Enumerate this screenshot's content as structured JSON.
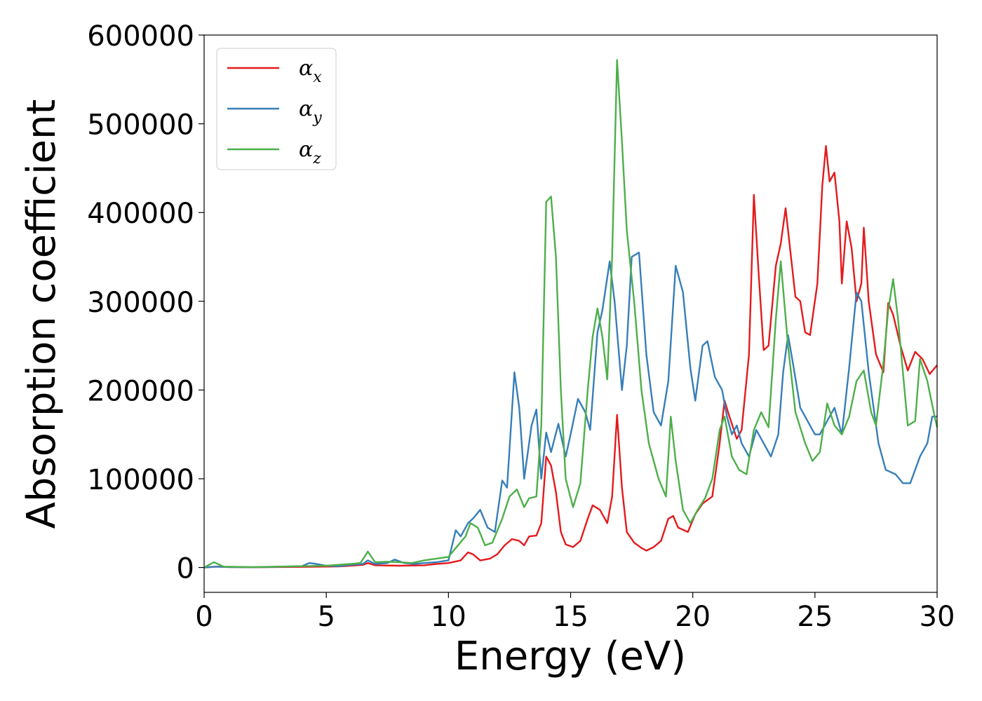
{
  "chart_data": {
    "type": "line",
    "title": "",
    "xlabel": "Energy (eV)",
    "ylabel": "Absorption coefficient",
    "xlim": [
      0,
      30
    ],
    "ylim": [
      -28000,
      600000
    ],
    "x_ticks": [
      "0",
      "5",
      "10",
      "15",
      "20",
      "25",
      "30"
    ],
    "y_ticks": [
      "0",
      "100000",
      "200000",
      "300000",
      "400000",
      "500000",
      "600000"
    ],
    "x_tick_values": [
      0,
      5,
      10,
      15,
      20,
      25,
      30
    ],
    "y_tick_values": [
      0,
      100000,
      200000,
      300000,
      400000,
      500000,
      600000
    ],
    "grid": false,
    "legend": "top-left",
    "series": [
      {
        "name": "αx",
        "legend_base": "α",
        "legend_sub": "x",
        "color": "#e41a1c",
        "points": [
          [
            0,
            0
          ],
          [
            0.5,
            1000
          ],
          [
            1,
            500
          ],
          [
            2,
            300
          ],
          [
            3,
            500
          ],
          [
            4,
            700
          ],
          [
            5,
            1000
          ],
          [
            5.5,
            1200
          ],
          [
            6,
            2000
          ],
          [
            6.5,
            3000
          ],
          [
            6.7,
            5000
          ],
          [
            7,
            2500
          ],
          [
            8,
            2000
          ],
          [
            9,
            2500
          ],
          [
            9.5,
            4000
          ],
          [
            10,
            5000
          ],
          [
            10.5,
            8000
          ],
          [
            10.8,
            17000
          ],
          [
            11,
            15000
          ],
          [
            11.3,
            8000
          ],
          [
            11.7,
            10000
          ],
          [
            12,
            15000
          ],
          [
            12.3,
            25000
          ],
          [
            12.6,
            32000
          ],
          [
            12.9,
            30000
          ],
          [
            13.1,
            25000
          ],
          [
            13.3,
            35000
          ],
          [
            13.6,
            36000
          ],
          [
            13.8,
            50000
          ],
          [
            14,
            125000
          ],
          [
            14.2,
            115000
          ],
          [
            14.4,
            85000
          ],
          [
            14.6,
            40000
          ],
          [
            14.8,
            26000
          ],
          [
            15.1,
            23000
          ],
          [
            15.4,
            30000
          ],
          [
            15.7,
            55000
          ],
          [
            15.9,
            70000
          ],
          [
            16.2,
            65000
          ],
          [
            16.5,
            50000
          ],
          [
            16.7,
            80000
          ],
          [
            16.9,
            172000
          ],
          [
            17.1,
            90000
          ],
          [
            17.3,
            40000
          ],
          [
            17.6,
            28000
          ],
          [
            17.9,
            22000
          ],
          [
            18.1,
            19000
          ],
          [
            18.4,
            23000
          ],
          [
            18.7,
            30000
          ],
          [
            19,
            55000
          ],
          [
            19.2,
            58000
          ],
          [
            19.4,
            45000
          ],
          [
            19.8,
            40000
          ],
          [
            20.1,
            60000
          ],
          [
            20.4,
            72000
          ],
          [
            20.8,
            80000
          ],
          [
            21.1,
            140000
          ],
          [
            21.3,
            188000
          ],
          [
            21.5,
            170000
          ],
          [
            21.8,
            145000
          ],
          [
            22,
            155000
          ],
          [
            22.3,
            240000
          ],
          [
            22.5,
            420000
          ],
          [
            22.7,
            330000
          ],
          [
            22.9,
            245000
          ],
          [
            23.1,
            250000
          ],
          [
            23.4,
            340000
          ],
          [
            23.6,
            365000
          ],
          [
            23.8,
            405000
          ],
          [
            24,
            355000
          ],
          [
            24.2,
            305000
          ],
          [
            24.4,
            300000
          ],
          [
            24.6,
            265000
          ],
          [
            24.8,
            262000
          ],
          [
            25.1,
            320000
          ],
          [
            25.3,
            430000
          ],
          [
            25.45,
            475000
          ],
          [
            25.6,
            435000
          ],
          [
            25.8,
            445000
          ],
          [
            26,
            390000
          ],
          [
            26.1,
            320000
          ],
          [
            26.3,
            390000
          ],
          [
            26.5,
            360000
          ],
          [
            26.7,
            300000
          ],
          [
            26.9,
            320000
          ],
          [
            27,
            383000
          ],
          [
            27.2,
            300000
          ],
          [
            27.5,
            240000
          ],
          [
            27.8,
            220000
          ],
          [
            28,
            298000
          ],
          [
            28.2,
            285000
          ],
          [
            28.5,
            250000
          ],
          [
            28.8,
            222000
          ],
          [
            29.1,
            243000
          ],
          [
            29.4,
            235000
          ],
          [
            29.7,
            218000
          ],
          [
            30,
            228000
          ]
        ]
      },
      {
        "name": "αy",
        "legend_base": "α",
        "legend_sub": "y",
        "color": "#377eb8",
        "points": [
          [
            0,
            0
          ],
          [
            0.5,
            1000
          ],
          [
            1,
            500
          ],
          [
            2,
            300
          ],
          [
            3,
            800
          ],
          [
            4,
            1500
          ],
          [
            4.3,
            5000
          ],
          [
            4.6,
            4000
          ],
          [
            5,
            2000
          ],
          [
            5.5,
            1500
          ],
          [
            6,
            3000
          ],
          [
            6.5,
            4000
          ],
          [
            6.7,
            8000
          ],
          [
            7,
            4000
          ],
          [
            7.5,
            5000
          ],
          [
            7.8,
            9000
          ],
          [
            8.2,
            5000
          ],
          [
            8.6,
            4000
          ],
          [
            9,
            5000
          ],
          [
            9.5,
            6000
          ],
          [
            10,
            8000
          ],
          [
            10.3,
            42000
          ],
          [
            10.5,
            35000
          ],
          [
            10.8,
            50000
          ],
          [
            11,
            55000
          ],
          [
            11.3,
            65000
          ],
          [
            11.6,
            45000
          ],
          [
            11.9,
            40000
          ],
          [
            12.2,
            98000
          ],
          [
            12.4,
            90000
          ],
          [
            12.7,
            220000
          ],
          [
            12.9,
            180000
          ],
          [
            13.1,
            100000
          ],
          [
            13.4,
            160000
          ],
          [
            13.6,
            178000
          ],
          [
            13.8,
            100000
          ],
          [
            14,
            152000
          ],
          [
            14.2,
            130000
          ],
          [
            14.5,
            162000
          ],
          [
            14.8,
            125000
          ],
          [
            15,
            150000
          ],
          [
            15.3,
            190000
          ],
          [
            15.6,
            175000
          ],
          [
            15.8,
            155000
          ],
          [
            16.1,
            265000
          ],
          [
            16.3,
            290000
          ],
          [
            16.6,
            345000
          ],
          [
            16.8,
            300000
          ],
          [
            17.1,
            200000
          ],
          [
            17.3,
            250000
          ],
          [
            17.5,
            350000
          ],
          [
            17.8,
            355000
          ],
          [
            18.1,
            240000
          ],
          [
            18.4,
            175000
          ],
          [
            18.7,
            160000
          ],
          [
            19,
            210000
          ],
          [
            19.3,
            340000
          ],
          [
            19.6,
            310000
          ],
          [
            19.9,
            225000
          ],
          [
            20.1,
            188000
          ],
          [
            20.4,
            250000
          ],
          [
            20.6,
            255000
          ],
          [
            20.9,
            215000
          ],
          [
            21.2,
            200000
          ],
          [
            21.4,
            170000
          ],
          [
            21.6,
            150000
          ],
          [
            21.8,
            160000
          ],
          [
            22,
            140000
          ],
          [
            22.3,
            125000
          ],
          [
            22.6,
            155000
          ],
          [
            22.9,
            140000
          ],
          [
            23.2,
            125000
          ],
          [
            23.5,
            150000
          ],
          [
            23.7,
            220000
          ],
          [
            23.9,
            262000
          ],
          [
            24.1,
            230000
          ],
          [
            24.4,
            180000
          ],
          [
            24.7,
            165000
          ],
          [
            25,
            150000
          ],
          [
            25.2,
            150000
          ],
          [
            25.6,
            170000
          ],
          [
            25.8,
            180000
          ],
          [
            26.1,
            150000
          ],
          [
            26.4,
            225000
          ],
          [
            26.7,
            310000
          ],
          [
            26.9,
            300000
          ],
          [
            27.2,
            220000
          ],
          [
            27.6,
            140000
          ],
          [
            27.9,
            110000
          ],
          [
            28.3,
            105000
          ],
          [
            28.6,
            95000
          ],
          [
            28.9,
            95000
          ],
          [
            29.3,
            125000
          ],
          [
            29.6,
            140000
          ],
          [
            29.8,
            170000
          ],
          [
            30,
            170000
          ]
        ]
      },
      {
        "name": "αz",
        "legend_base": "α",
        "legend_sub": "z",
        "color": "#4daf4a",
        "points": [
          [
            0,
            0
          ],
          [
            0.4,
            6000
          ],
          [
            0.8,
            1000
          ],
          [
            2,
            500
          ],
          [
            3,
            1000
          ],
          [
            4,
            1500
          ],
          [
            5,
            2000
          ],
          [
            6,
            4000
          ],
          [
            6.4,
            5000
          ],
          [
            6.7,
            18000
          ],
          [
            7,
            6000
          ],
          [
            7.5,
            6500
          ],
          [
            8,
            6000
          ],
          [
            8.5,
            5000
          ],
          [
            9,
            8000
          ],
          [
            9.5,
            10000
          ],
          [
            10,
            12000
          ],
          [
            10.3,
            22000
          ],
          [
            10.7,
            35000
          ],
          [
            10.9,
            50000
          ],
          [
            11.2,
            45000
          ],
          [
            11.5,
            25000
          ],
          [
            11.8,
            28000
          ],
          [
            12.2,
            55000
          ],
          [
            12.5,
            80000
          ],
          [
            12.8,
            88000
          ],
          [
            13.1,
            68000
          ],
          [
            13.3,
            78000
          ],
          [
            13.6,
            80000
          ],
          [
            13.8,
            160000
          ],
          [
            14,
            412000
          ],
          [
            14.2,
            418000
          ],
          [
            14.4,
            350000
          ],
          [
            14.6,
            200000
          ],
          [
            14.8,
            100000
          ],
          [
            15.1,
            68000
          ],
          [
            15.4,
            95000
          ],
          [
            15.7,
            200000
          ],
          [
            15.9,
            260000
          ],
          [
            16.1,
            292000
          ],
          [
            16.3,
            260000
          ],
          [
            16.5,
            212000
          ],
          [
            16.7,
            350000
          ],
          [
            16.9,
            572000
          ],
          [
            17.1,
            480000
          ],
          [
            17.3,
            380000
          ],
          [
            17.6,
            300000
          ],
          [
            17.9,
            200000
          ],
          [
            18.2,
            140000
          ],
          [
            18.6,
            100000
          ],
          [
            18.9,
            80000
          ],
          [
            19.1,
            170000
          ],
          [
            19.3,
            120000
          ],
          [
            19.6,
            65000
          ],
          [
            19.9,
            50000
          ],
          [
            20.2,
            65000
          ],
          [
            20.5,
            78000
          ],
          [
            20.8,
            100000
          ],
          [
            21.1,
            155000
          ],
          [
            21.3,
            170000
          ],
          [
            21.6,
            125000
          ],
          [
            21.9,
            110000
          ],
          [
            22.2,
            105000
          ],
          [
            22.5,
            155000
          ],
          [
            22.8,
            175000
          ],
          [
            23.1,
            158000
          ],
          [
            23.4,
            280000
          ],
          [
            23.6,
            345000
          ],
          [
            23.9,
            250000
          ],
          [
            24.2,
            175000
          ],
          [
            24.6,
            140000
          ],
          [
            24.9,
            120000
          ],
          [
            25.2,
            130000
          ],
          [
            25.5,
            185000
          ],
          [
            25.8,
            160000
          ],
          [
            26.1,
            150000
          ],
          [
            26.4,
            170000
          ],
          [
            26.7,
            210000
          ],
          [
            27,
            222000
          ],
          [
            27.3,
            175000
          ],
          [
            27.5,
            160000
          ],
          [
            27.8,
            230000
          ],
          [
            28,
            290000
          ],
          [
            28.2,
            325000
          ],
          [
            28.4,
            280000
          ],
          [
            28.8,
            160000
          ],
          [
            29.1,
            165000
          ],
          [
            29.3,
            235000
          ],
          [
            29.6,
            210000
          ],
          [
            29.9,
            170000
          ],
          [
            30,
            158000
          ]
        ]
      }
    ]
  }
}
